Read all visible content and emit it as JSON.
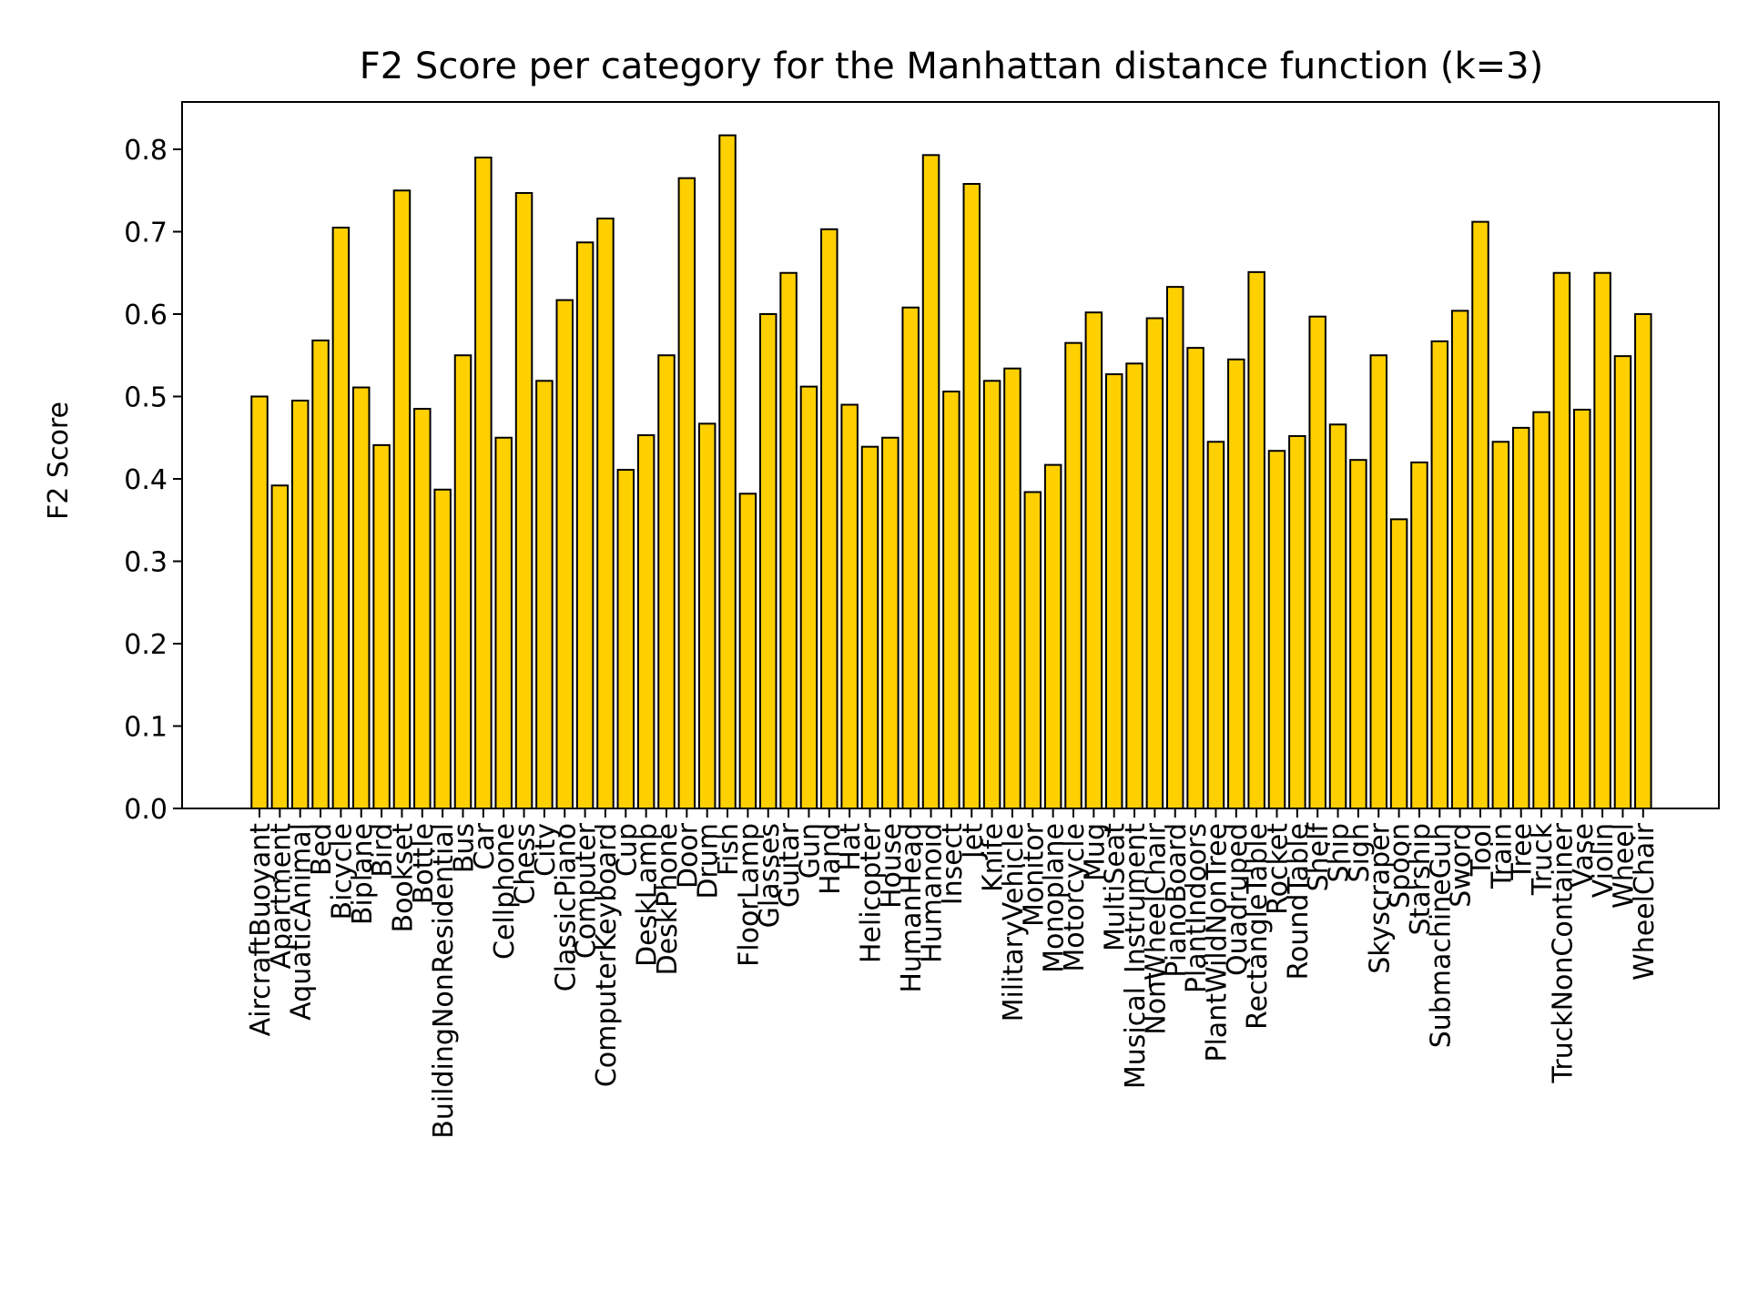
{
  "chart_data": {
    "type": "bar",
    "title": "F2 Score per category for the Manhattan distance function (k=3)",
    "xlabel": "",
    "ylabel": "F2 Score",
    "ylim": [
      0,
      0.86
    ],
    "yticks": [
      "0.0",
      "0.1",
      "0.2",
      "0.3",
      "0.4",
      "0.5",
      "0.6",
      "0.7",
      "0.8"
    ],
    "grid": false,
    "bar_color": "#ffd000",
    "edge_color": "#000000",
    "categories": [
      "AircraftBuoyant",
      "Apartment",
      "AquaticAnimal",
      "Bed",
      "Bicycle",
      "Biplane",
      "Bird",
      "Bookset",
      "Bottle",
      "BuildingNonResidential",
      "Bus",
      "Car",
      "Cellphone",
      "Chess",
      "City",
      "ClassicPiano",
      "Computer",
      "ComputerKeyboard",
      "Cup",
      "DeskLamp",
      "DeskPhone",
      "Door",
      "Drum",
      "Fish",
      "FloorLamp",
      "Glasses",
      "Guitar",
      "Gun",
      "Hand",
      "Hat",
      "Helicopter",
      "House",
      "HumanHead",
      "Humanoid",
      "Insect",
      "Jet",
      "Knife",
      "MilitaryVehicle",
      "Monitor",
      "Monoplane",
      "Motorcycle",
      "Mug",
      "MultiSeat",
      "Musical_Instrument",
      "NonWheelChair",
      "PianoBoard",
      "PlantIndoors",
      "PlantWildNonTree",
      "Quadruped",
      "RectangleTable",
      "Rocket",
      "RoundTable",
      "Shelf",
      "Ship",
      "Sign",
      "Skyscraper",
      "Spoon",
      "Starship",
      "SubmachineGun",
      "Sword",
      "Tool",
      "Train",
      "Tree",
      "Truck",
      "TruckNonContainer",
      "Vase",
      "Violin",
      "Wheel",
      "WheelChair"
    ],
    "values": [
      0.5,
      0.392,
      0.495,
      0.568,
      0.705,
      0.511,
      0.441,
      0.75,
      0.485,
      0.387,
      0.55,
      0.79,
      0.45,
      0.747,
      0.519,
      0.617,
      0.687,
      0.716,
      0.411,
      0.453,
      0.55,
      0.765,
      0.467,
      0.817,
      0.382,
      0.6,
      0.65,
      0.512,
      0.703,
      0.49,
      0.439,
      0.45,
      0.608,
      0.793,
      0.506,
      0.758,
      0.519,
      0.534,
      0.384,
      0.417,
      0.565,
      0.602,
      0.527,
      0.54,
      0.595,
      0.633,
      0.559,
      0.445,
      0.545,
      0.651,
      0.434,
      0.452,
      0.597,
      0.466,
      0.423,
      0.55,
      0.351,
      0.42,
      0.567,
      0.604,
      0.712,
      0.445,
      0.462,
      0.481,
      0.65,
      0.484,
      0.65,
      0.549,
      0.6
    ]
  }
}
